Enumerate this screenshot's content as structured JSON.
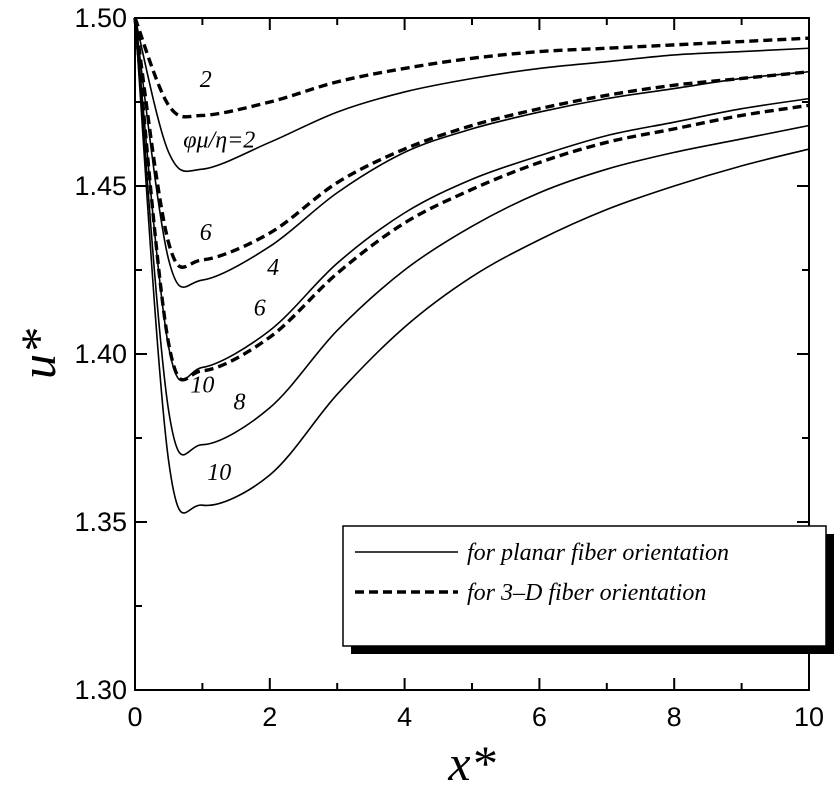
{
  "chart_data": {
    "type": "line",
    "xlabel": "x*",
    "ylabel": "u*",
    "xlim": [
      0,
      10
    ],
    "ylim": [
      1.3,
      1.5
    ],
    "x_ticks": [
      "0",
      "2",
      "4",
      "6",
      "8",
      "10"
    ],
    "y_ticks": [
      "1.30",
      "1.35",
      "1.40",
      "1.45",
      "1.50"
    ],
    "grid": false,
    "legend_position": "lower-right",
    "legend": [
      {
        "label": "for planar fiber orientation",
        "style": "solid"
      },
      {
        "label": "for 3–D fiber orientation",
        "style": "dashed"
      }
    ],
    "series": [
      {
        "style": "solid",
        "label": "φμ/η=2",
        "x": [
          0,
          0.5,
          1,
          2,
          3,
          4,
          5,
          6,
          7,
          8,
          9,
          10
        ],
        "y": [
          1.5,
          1.46,
          1.455,
          1.463,
          1.472,
          1.478,
          1.482,
          1.485,
          1.487,
          1.489,
          1.49,
          1.491
        ]
      },
      {
        "style": "solid",
        "label": "4",
        "x": [
          0,
          0.5,
          1,
          2,
          3,
          4,
          5,
          6,
          7,
          8,
          9,
          10
        ],
        "y": [
          1.5,
          1.428,
          1.422,
          1.432,
          1.448,
          1.46,
          1.467,
          1.472,
          1.476,
          1.479,
          1.482,
          1.484
        ]
      },
      {
        "style": "solid",
        "label": "6",
        "x": [
          0,
          0.5,
          1,
          2,
          3,
          4,
          5,
          6,
          7,
          8,
          9,
          10
        ],
        "y": [
          1.5,
          1.402,
          1.396,
          1.407,
          1.427,
          1.442,
          1.452,
          1.459,
          1.465,
          1.469,
          1.473,
          1.476
        ]
      },
      {
        "style": "solid",
        "label": "8",
        "x": [
          0,
          0.5,
          1,
          2,
          3,
          4,
          5,
          6,
          7,
          8,
          9,
          10
        ],
        "y": [
          1.5,
          1.383,
          1.373,
          1.384,
          1.407,
          1.425,
          1.438,
          1.448,
          1.455,
          1.46,
          1.464,
          1.468
        ]
      },
      {
        "style": "solid",
        "label": "10",
        "x": [
          0,
          0.5,
          1,
          2,
          3,
          4,
          5,
          6,
          7,
          8,
          9,
          10
        ],
        "y": [
          1.5,
          1.368,
          1.355,
          1.364,
          1.388,
          1.408,
          1.423,
          1.434,
          1.443,
          1.45,
          1.456,
          1.461
        ]
      },
      {
        "style": "dashed",
        "label": "2",
        "x": [
          0,
          0.5,
          1,
          2,
          3,
          4,
          5,
          6,
          7,
          8,
          9,
          10
        ],
        "y": [
          1.5,
          1.474,
          1.471,
          1.475,
          1.481,
          1.485,
          1.488,
          1.49,
          1.491,
          1.492,
          1.493,
          1.494
        ]
      },
      {
        "style": "dashed",
        "label": "6",
        "x": [
          0,
          0.5,
          1,
          2,
          3,
          4,
          5,
          6,
          7,
          8,
          9,
          10
        ],
        "y": [
          1.5,
          1.433,
          1.428,
          1.436,
          1.451,
          1.461,
          1.468,
          1.473,
          1.477,
          1.48,
          1.482,
          1.484
        ]
      },
      {
        "style": "dashed",
        "label": "10",
        "x": [
          0,
          0.5,
          1,
          2,
          3,
          4,
          5,
          6,
          7,
          8,
          9,
          10
        ],
        "y": [
          1.5,
          1.403,
          1.395,
          1.405,
          1.424,
          1.439,
          1.449,
          1.457,
          1.463,
          1.467,
          1.471,
          1.474
        ]
      }
    ],
    "annotations": [
      {
        "text": "2",
        "x": 1.05,
        "y": 1.4795
      },
      {
        "text": "φμ/η=2",
        "x": 1.25,
        "y": 1.4615
      },
      {
        "text": "6",
        "x": 1.05,
        "y": 1.434
      },
      {
        "text": "4",
        "x": 2.05,
        "y": 1.4235
      },
      {
        "text": "6",
        "x": 1.85,
        "y": 1.4115
      },
      {
        "text": "10",
        "x": 1.0,
        "y": 1.3885
      },
      {
        "text": "8",
        "x": 1.55,
        "y": 1.3835
      },
      {
        "text": "10",
        "x": 1.25,
        "y": 1.3625
      }
    ]
  }
}
